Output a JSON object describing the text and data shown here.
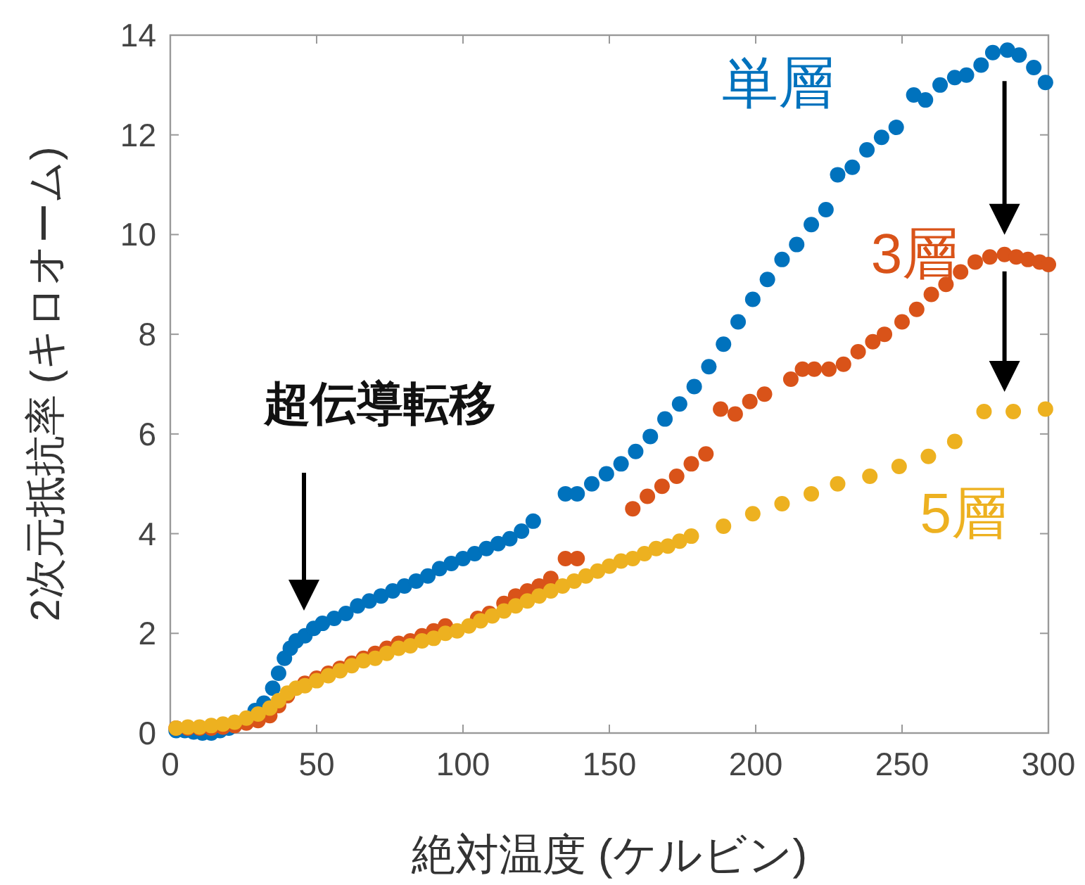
{
  "chart_data": {
    "type": "scatter",
    "xlabel": "絶対温度 (ケルビン)",
    "ylabel": "2次元抵抗率 (キロオーム)",
    "xlim": [
      0,
      300
    ],
    "ylim": [
      0,
      14
    ],
    "xticks": [
      0,
      50,
      100,
      150,
      200,
      250,
      300
    ],
    "yticks": [
      0,
      2,
      4,
      6,
      8,
      10,
      12,
      14
    ],
    "grid": false,
    "marker": "circle",
    "annotations": [
      "超伝導転移"
    ],
    "series": [
      {
        "name": "単層",
        "color": "#0072bd",
        "x": [
          2,
          5,
          8,
          11,
          14,
          17,
          20,
          29,
          32,
          35,
          37,
          39,
          41,
          43,
          46,
          49,
          52,
          56,
          60,
          64,
          68,
          72,
          76,
          80,
          84,
          88,
          92,
          96,
          100,
          104,
          108,
          112,
          116,
          120,
          124,
          135,
          139,
          144,
          149,
          154,
          159,
          164,
          169,
          174,
          179,
          184,
          189,
          194,
          199,
          204,
          209,
          214,
          219,
          224,
          228,
          233,
          238,
          243,
          248,
          254,
          258,
          263,
          268,
          272,
          277,
          281,
          286,
          290,
          295,
          299
        ],
        "values": [
          0.05,
          0.05,
          0.02,
          0,
          0,
          0.05,
          0.1,
          0.45,
          0.6,
          0.9,
          1.2,
          1.5,
          1.7,
          1.85,
          1.95,
          2.1,
          2.2,
          2.3,
          2.4,
          2.55,
          2.65,
          2.75,
          2.85,
          2.95,
          3.05,
          3.15,
          3.3,
          3.4,
          3.5,
          3.6,
          3.7,
          3.8,
          3.9,
          4.05,
          4.25,
          4.8,
          4.8,
          5.0,
          5.2,
          5.4,
          5.65,
          5.95,
          6.3,
          6.6,
          6.95,
          7.35,
          7.8,
          8.25,
          8.7,
          9.1,
          9.5,
          9.8,
          10.2,
          10.5,
          11.2,
          11.35,
          11.7,
          11.95,
          12.15,
          12.8,
          12.7,
          13.0,
          13.15,
          13.2,
          13.4,
          13.65,
          13.7,
          13.6,
          13.35,
          13.05
        ]
      },
      {
        "name": "3層",
        "color": "#d95319",
        "x": [
          2,
          6,
          10,
          14,
          18,
          22,
          26,
          30,
          34,
          37,
          40,
          46,
          50,
          54,
          58,
          62,
          66,
          70,
          74,
          78,
          82,
          86,
          90,
          94,
          105,
          109,
          114,
          118,
          122,
          126,
          130,
          135,
          139,
          158,
          163,
          168,
          173,
          178,
          183,
          188,
          193,
          198,
          203,
          212,
          216,
          220,
          225,
          230,
          235,
          240,
          244,
          250,
          255,
          260,
          265,
          270,
          275,
          280,
          285,
          289,
          293,
          297,
          300
        ],
        "values": [
          0.1,
          0.1,
          0.1,
          0.1,
          0.12,
          0.15,
          0.2,
          0.25,
          0.35,
          0.55,
          0.75,
          1.0,
          1.1,
          1.2,
          1.3,
          1.4,
          1.5,
          1.6,
          1.7,
          1.8,
          1.85,
          1.95,
          2.05,
          2.15,
          2.3,
          2.4,
          2.6,
          2.75,
          2.85,
          2.95,
          3.1,
          3.5,
          3.5,
          4.5,
          4.75,
          4.95,
          5.15,
          5.4,
          5.6,
          6.5,
          6.4,
          6.65,
          6.8,
          7.1,
          7.3,
          7.3,
          7.3,
          7.4,
          7.65,
          7.85,
          8.0,
          8.25,
          8.5,
          8.8,
          9.0,
          9.25,
          9.45,
          9.55,
          9.6,
          9.55,
          9.5,
          9.45,
          9.4
        ]
      },
      {
        "name": "5層",
        "color": "#edb120",
        "x": [
          2,
          6,
          10,
          14,
          18,
          22,
          26,
          30,
          34,
          37,
          40,
          43,
          46,
          50,
          54,
          58,
          62,
          66,
          70,
          74,
          78,
          82,
          86,
          90,
          94,
          98,
          102,
          106,
          110,
          114,
          118,
          122,
          126,
          130,
          134,
          138,
          142,
          146,
          150,
          154,
          158,
          162,
          166,
          170,
          174,
          178,
          189,
          199,
          209,
          219,
          228,
          239,
          249,
          259,
          268,
          278,
          288,
          299
        ],
        "values": [
          0.1,
          0.12,
          0.12,
          0.15,
          0.18,
          0.22,
          0.3,
          0.38,
          0.5,
          0.65,
          0.8,
          0.9,
          0.95,
          1.05,
          1.15,
          1.25,
          1.35,
          1.45,
          1.5,
          1.6,
          1.7,
          1.75,
          1.85,
          1.9,
          2.0,
          2.05,
          2.15,
          2.25,
          2.35,
          2.45,
          2.55,
          2.65,
          2.75,
          2.85,
          2.95,
          3.05,
          3.15,
          3.25,
          3.35,
          3.45,
          3.5,
          3.6,
          3.7,
          3.75,
          3.85,
          3.95,
          4.15,
          4.4,
          4.6,
          4.8,
          5.0,
          5.15,
          5.35,
          5.55,
          5.85,
          6.45,
          6.45,
          6.5
        ]
      }
    ]
  }
}
